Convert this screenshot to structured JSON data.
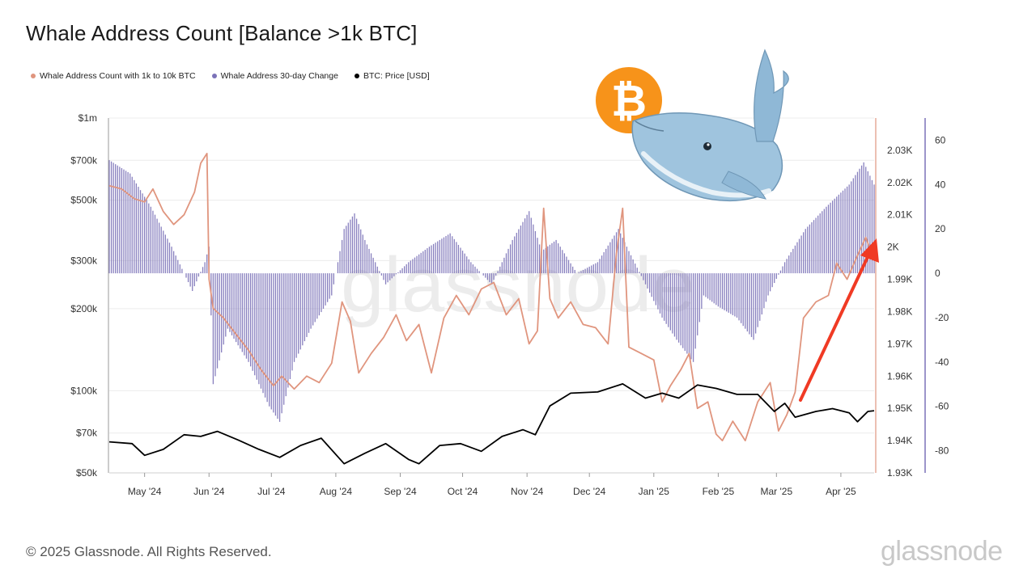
{
  "title": "Whale Address Count [Balance >1k BTC]",
  "footer": "© 2025 Glassnode. All Rights Reserved.",
  "brand": "glassnode",
  "colors": {
    "whale_count": "#e0957e",
    "change_bars": "#7b72b8",
    "price": "#000000",
    "arrow": "#f03a24",
    "bitcoin": "#f7931a"
  },
  "chart_data": {
    "type": "line",
    "title": "Whale Address Count [Balance >1k BTC]",
    "x_range": [
      "2024-04-14",
      "2025-04-17"
    ],
    "x_ticks": [
      "May '24",
      "Jun '24",
      "Jul '24",
      "Aug '24",
      "Sep '24",
      "Oct '24",
      "Nov '24",
      "Dec '24",
      "Jan '25",
      "Feb '25",
      "Mar '25",
      "Apr '25"
    ],
    "axes": {
      "left_price": {
        "scale": "log",
        "range": [
          50000,
          1000000
        ],
        "ticks": [
          "$50k",
          "$70k",
          "$100k",
          "$200k",
          "$300k",
          "$500k",
          "$700k",
          "$1m"
        ],
        "tick_values": [
          50000,
          70000,
          100000,
          200000,
          300000,
          500000,
          700000,
          1000000
        ]
      },
      "right_count": {
        "range": [
          1930,
          2040
        ],
        "ticks": [
          "1.93K",
          "1.94K",
          "1.95K",
          "1.96K",
          "1.97K",
          "1.98K",
          "1.99K",
          "2K",
          "2.01K",
          "2.02K",
          "2.03K"
        ],
        "tick_values": [
          1930,
          1940,
          1950,
          1960,
          1970,
          1980,
          1990,
          2000,
          2010,
          2020,
          2030
        ]
      },
      "right_change": {
        "range": [
          -90,
          70
        ],
        "ticks": [
          "60",
          "40",
          "20",
          "0",
          "-20",
          "-40",
          "-60",
          "-80"
        ],
        "tick_values": [
          60,
          40,
          20,
          0,
          -20,
          -40,
          -60,
          -80
        ]
      }
    },
    "grid": true,
    "legend_position": "top-left",
    "series": [
      {
        "name": "Whale Address Count with 1k to 10k BTC",
        "axis": "right_count",
        "style": "line",
        "points": [
          [
            "2024-04-14",
            2019
          ],
          [
            "2024-04-20",
            2018
          ],
          [
            "2024-04-26",
            2015
          ],
          [
            "2024-05-01",
            2014
          ],
          [
            "2024-05-05",
            2018
          ],
          [
            "2024-05-10",
            2011
          ],
          [
            "2024-05-15",
            2007
          ],
          [
            "2024-05-20",
            2010
          ],
          [
            "2024-05-25",
            2017
          ],
          [
            "2024-05-28",
            2026
          ],
          [
            "2024-05-31",
            2029
          ],
          [
            "2024-06-01",
            1990
          ],
          [
            "2024-06-03",
            1981
          ],
          [
            "2024-06-08",
            1978
          ],
          [
            "2024-06-14",
            1973
          ],
          [
            "2024-06-20",
            1968
          ],
          [
            "2024-06-26",
            1962
          ],
          [
            "2024-07-02",
            1957
          ],
          [
            "2024-07-06",
            1960
          ],
          [
            "2024-07-12",
            1956
          ],
          [
            "2024-07-18",
            1960
          ],
          [
            "2024-07-24",
            1958
          ],
          [
            "2024-07-30",
            1964
          ],
          [
            "2024-08-04",
            1983
          ],
          [
            "2024-08-08",
            1977
          ],
          [
            "2024-08-12",
            1961
          ],
          [
            "2024-08-18",
            1967
          ],
          [
            "2024-08-24",
            1972
          ],
          [
            "2024-08-30",
            1979
          ],
          [
            "2024-09-04",
            1971
          ],
          [
            "2024-09-10",
            1976
          ],
          [
            "2024-09-16",
            1961
          ],
          [
            "2024-09-22",
            1978
          ],
          [
            "2024-09-28",
            1985
          ],
          [
            "2024-10-04",
            1979
          ],
          [
            "2024-10-10",
            1987
          ],
          [
            "2024-10-16",
            1989
          ],
          [
            "2024-10-22",
            1979
          ],
          [
            "2024-10-28",
            1984
          ],
          [
            "2024-11-02",
            1970
          ],
          [
            "2024-11-06",
            1974
          ],
          [
            "2024-11-09",
            2012
          ],
          [
            "2024-11-12",
            1984
          ],
          [
            "2024-11-16",
            1978
          ],
          [
            "2024-11-22",
            1983
          ],
          [
            "2024-11-28",
            1976
          ],
          [
            "2024-12-04",
            1975
          ],
          [
            "2024-12-10",
            1970
          ],
          [
            "2024-12-14",
            1998
          ],
          [
            "2024-12-17",
            2012
          ],
          [
            "2024-12-20",
            1969
          ],
          [
            "2024-12-26",
            1967
          ],
          [
            "2025-01-01",
            1965
          ],
          [
            "2025-01-05",
            1952
          ],
          [
            "2025-01-09",
            1957
          ],
          [
            "2025-01-14",
            1962
          ],
          [
            "2025-01-18",
            1967
          ],
          [
            "2025-01-22",
            1950
          ],
          [
            "2025-01-27",
            1952
          ],
          [
            "2025-01-31",
            1942
          ],
          [
            "2025-02-03",
            1940
          ],
          [
            "2025-02-08",
            1946
          ],
          [
            "2025-02-14",
            1940
          ],
          [
            "2025-02-20",
            1952
          ],
          [
            "2025-02-26",
            1958
          ],
          [
            "2025-03-02",
            1943
          ],
          [
            "2025-03-06",
            1948
          ],
          [
            "2025-03-10",
            1955
          ],
          [
            "2025-03-14",
            1978
          ],
          [
            "2025-03-20",
            1983
          ],
          [
            "2025-03-26",
            1985
          ],
          [
            "2025-03-30",
            1995
          ],
          [
            "2025-04-04",
            1990
          ],
          [
            "2025-04-08",
            1996
          ],
          [
            "2025-04-13",
            2003
          ],
          [
            "2025-04-17",
            1996
          ]
        ]
      },
      {
        "name": "Whale Address 30-day Change",
        "axis": "right_change",
        "style": "bar",
        "points": [
          [
            "2024-04-14",
            51
          ],
          [
            "2024-04-24",
            45
          ],
          [
            "2024-05-04",
            30
          ],
          [
            "2024-05-14",
            12
          ],
          [
            "2024-05-20",
            0
          ],
          [
            "2024-05-24",
            -8
          ],
          [
            "2024-05-30",
            5
          ],
          [
            "2024-06-01",
            12
          ],
          [
            "2024-06-03",
            -50
          ],
          [
            "2024-06-10",
            -25
          ],
          [
            "2024-06-20",
            -40
          ],
          [
            "2024-06-30",
            -60
          ],
          [
            "2024-07-05",
            -67
          ],
          [
            "2024-07-12",
            -40
          ],
          [
            "2024-07-20",
            -25
          ],
          [
            "2024-07-30",
            -10
          ],
          [
            "2024-08-05",
            20
          ],
          [
            "2024-08-10",
            27
          ],
          [
            "2024-08-15",
            15
          ],
          [
            "2024-08-25",
            -5
          ],
          [
            "2024-09-05",
            5
          ],
          [
            "2024-09-15",
            12
          ],
          [
            "2024-09-25",
            18
          ],
          [
            "2024-10-05",
            5
          ],
          [
            "2024-10-15",
            -5
          ],
          [
            "2024-10-25",
            15
          ],
          [
            "2024-11-02",
            28
          ],
          [
            "2024-11-08",
            10
          ],
          [
            "2024-11-15",
            15
          ],
          [
            "2024-11-25",
            0
          ],
          [
            "2024-12-05",
            5
          ],
          [
            "2024-12-15",
            20
          ],
          [
            "2024-12-20",
            10
          ],
          [
            "2024-12-28",
            -5
          ],
          [
            "2025-01-05",
            -20
          ],
          [
            "2025-01-12",
            -30
          ],
          [
            "2025-01-20",
            -40
          ],
          [
            "2025-01-25",
            -10
          ],
          [
            "2025-02-01",
            -15
          ],
          [
            "2025-02-10",
            -20
          ],
          [
            "2025-02-18",
            -30
          ],
          [
            "2025-02-25",
            -10
          ],
          [
            "2025-03-05",
            5
          ],
          [
            "2025-03-15",
            20
          ],
          [
            "2025-03-25",
            30
          ],
          [
            "2025-04-05",
            40
          ],
          [
            "2025-04-12",
            50
          ],
          [
            "2025-04-17",
            40
          ]
        ]
      },
      {
        "name": "BTC: Price [USD]",
        "axis": "left_price",
        "style": "line",
        "points": [
          [
            "2024-04-14",
            65000
          ],
          [
            "2024-04-25",
            64000
          ],
          [
            "2024-05-01",
            58000
          ],
          [
            "2024-05-10",
            61000
          ],
          [
            "2024-05-20",
            69000
          ],
          [
            "2024-05-28",
            68000
          ],
          [
            "2024-06-05",
            71000
          ],
          [
            "2024-06-15",
            66000
          ],
          [
            "2024-06-25",
            61000
          ],
          [
            "2024-07-05",
            57000
          ],
          [
            "2024-07-15",
            63000
          ],
          [
            "2024-07-25",
            67000
          ],
          [
            "2024-08-05",
            54000
          ],
          [
            "2024-08-15",
            59000
          ],
          [
            "2024-08-25",
            64000
          ],
          [
            "2024-09-05",
            56000
          ],
          [
            "2024-09-10",
            54000
          ],
          [
            "2024-09-20",
            63000
          ],
          [
            "2024-09-30",
            64000
          ],
          [
            "2024-10-10",
            60000
          ],
          [
            "2024-10-20",
            68000
          ],
          [
            "2024-10-30",
            72000
          ],
          [
            "2024-11-05",
            69000
          ],
          [
            "2024-11-12",
            88000
          ],
          [
            "2024-11-22",
            98000
          ],
          [
            "2024-12-05",
            99000
          ],
          [
            "2024-12-17",
            106000
          ],
          [
            "2024-12-28",
            94000
          ],
          [
            "2025-01-05",
            98000
          ],
          [
            "2025-01-13",
            94000
          ],
          [
            "2025-01-22",
            105000
          ],
          [
            "2025-01-31",
            102000
          ],
          [
            "2025-02-10",
            97000
          ],
          [
            "2025-02-20",
            97000
          ],
          [
            "2025-02-28",
            84000
          ],
          [
            "2025-03-05",
            90000
          ],
          [
            "2025-03-10",
            80000
          ],
          [
            "2025-03-20",
            84000
          ],
          [
            "2025-03-28",
            86000
          ],
          [
            "2025-04-05",
            83000
          ],
          [
            "2025-04-09",
            77000
          ],
          [
            "2025-04-14",
            84000
          ],
          [
            "2025-04-17",
            84500
          ]
        ]
      }
    ]
  }
}
